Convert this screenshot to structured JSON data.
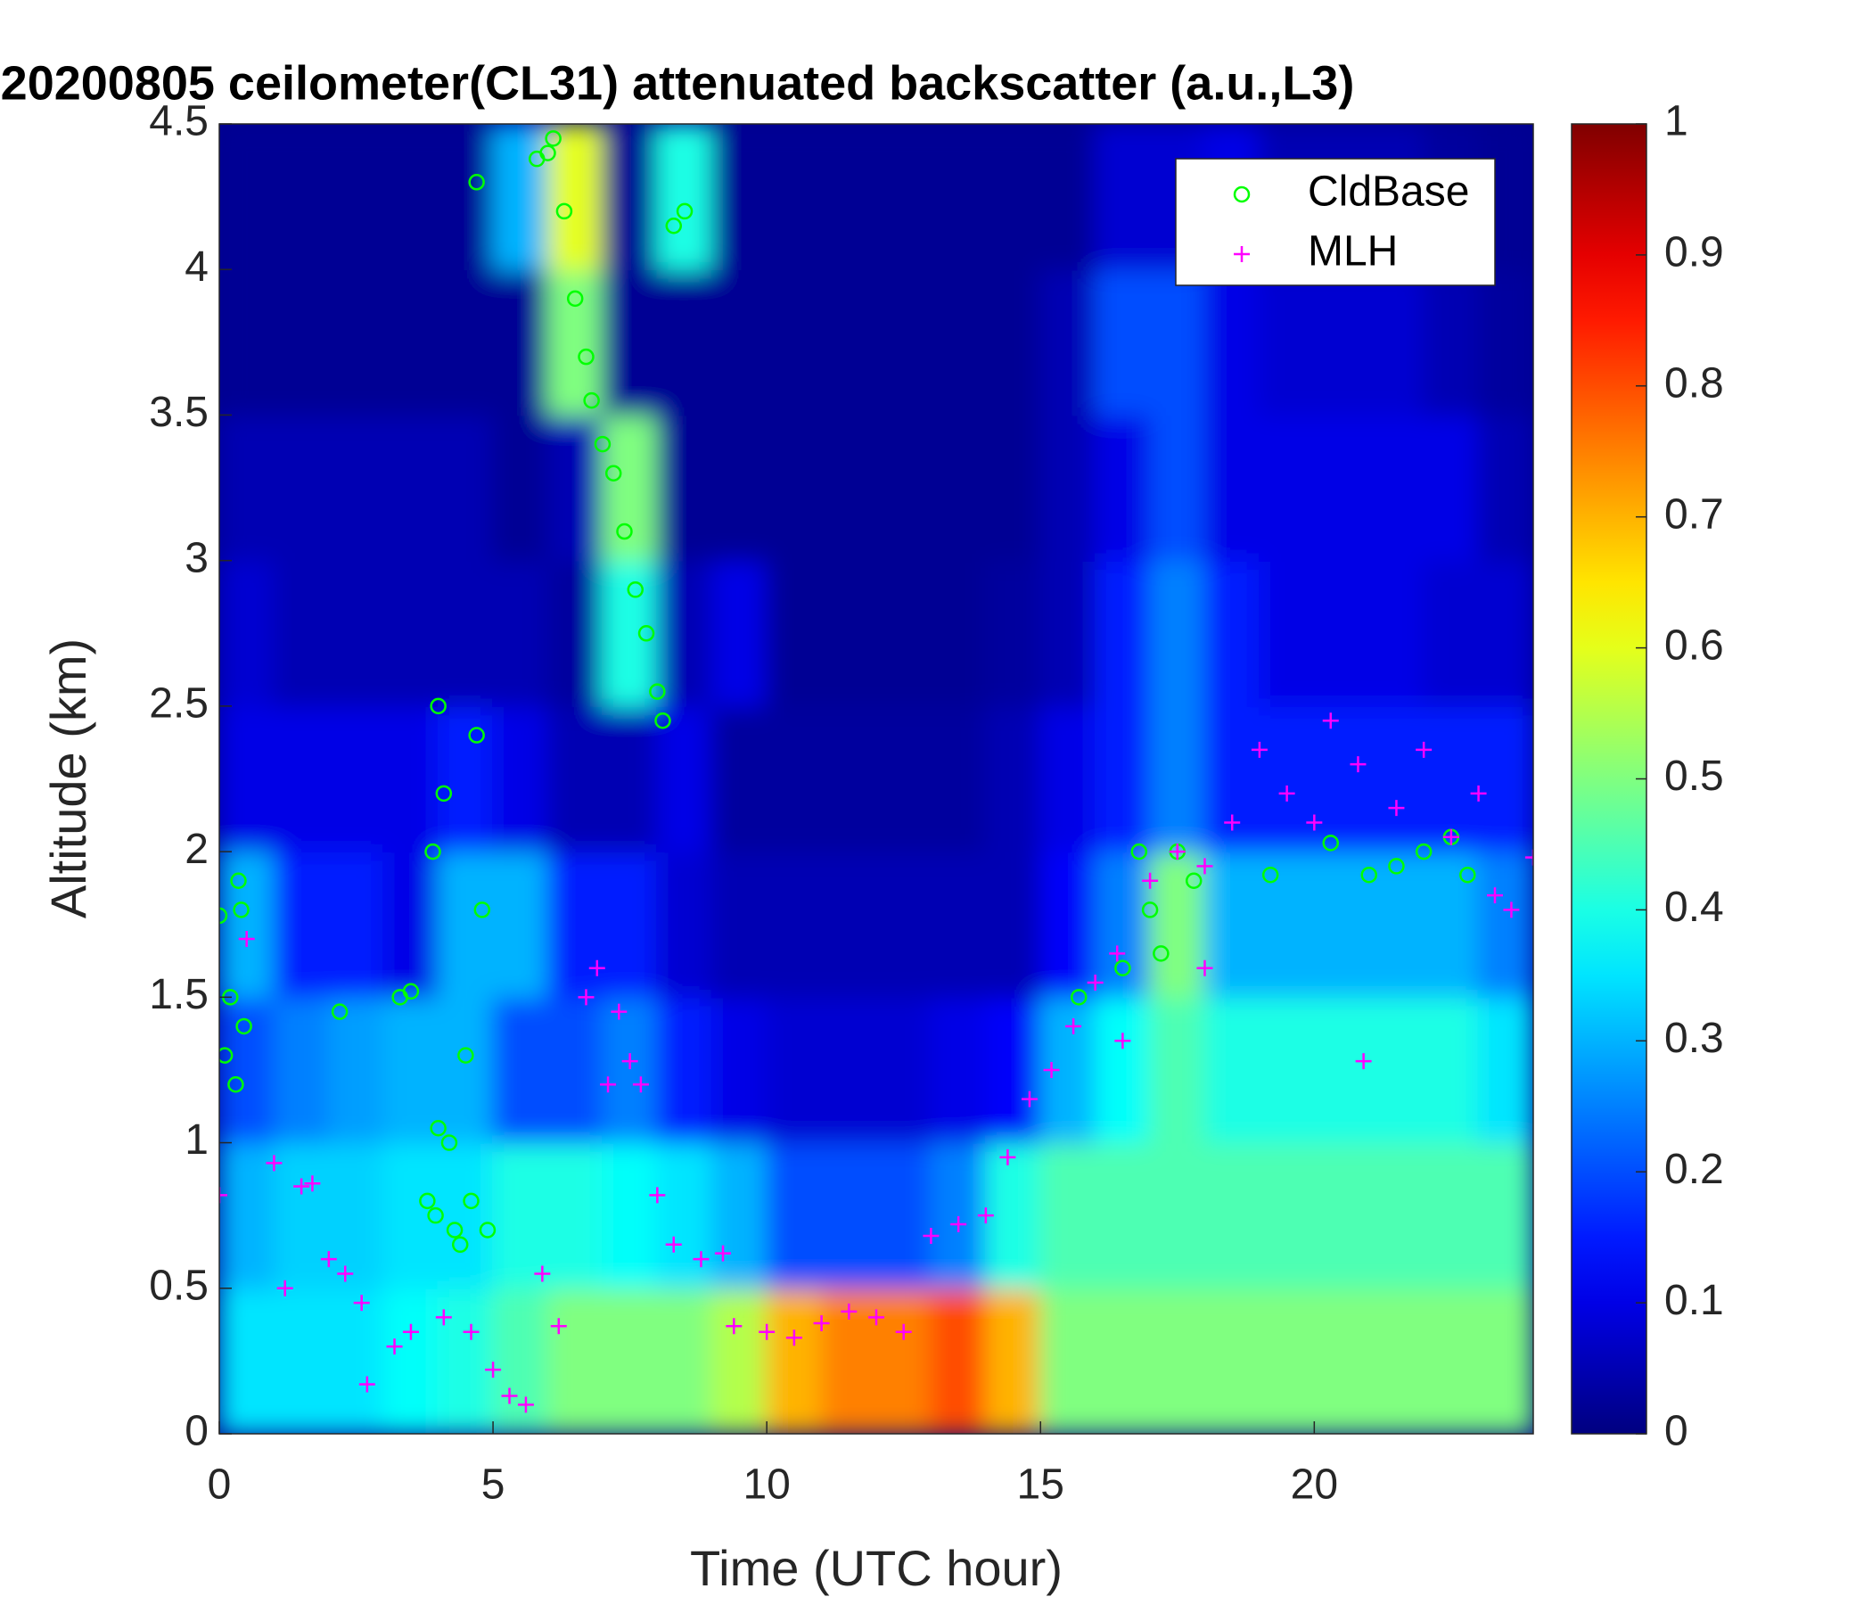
{
  "chart_data": {
    "type": "heatmap",
    "title": "20200805 ceilometer(CL31) attenuated backscatter (a.u.,L3)",
    "x_label": "Time (UTC hour)",
    "y_label": "Altitude (km)",
    "xlim": [
      0,
      24
    ],
    "xticks": [
      0,
      5,
      10,
      15,
      20
    ],
    "ylim": [
      0,
      4.5
    ],
    "yticks": [
      0,
      0.5,
      1,
      1.5,
      2,
      2.5,
      3,
      3.5,
      4,
      4.5
    ],
    "clim": [
      0,
      1
    ],
    "cticks": [
      0,
      0.1,
      0.2,
      0.3,
      0.4,
      0.5,
      0.6,
      0.7,
      0.8,
      0.9,
      1
    ],
    "colormap": "jet",
    "legend": "upper right",
    "xbins": [
      0,
      1,
      2,
      3,
      4,
      5,
      6,
      7,
      8,
      9,
      10,
      11,
      12,
      13,
      14,
      15,
      16,
      17,
      18,
      19,
      20,
      21,
      22,
      23,
      24
    ],
    "ybins": [
      0,
      0.5,
      1,
      1.5,
      2,
      2.5,
      3,
      3.5,
      4,
      4.5
    ],
    "z": [
      [
        0.35,
        0.35,
        0.35,
        0.38,
        0.4,
        0.45,
        0.5,
        0.5,
        0.5,
        0.55,
        0.7,
        0.75,
        0.75,
        0.8,
        0.7,
        0.5,
        0.5,
        0.5,
        0.5,
        0.5,
        0.5,
        0.5,
        0.5,
        0.5
      ],
      [
        0.3,
        0.33,
        0.33,
        0.35,
        0.35,
        0.4,
        0.4,
        0.38,
        0.35,
        0.3,
        0.2,
        0.2,
        0.2,
        0.25,
        0.4,
        0.45,
        0.45,
        0.45,
        0.45,
        0.45,
        0.45,
        0.45,
        0.45,
        0.45
      ],
      [
        0.2,
        0.25,
        0.28,
        0.3,
        0.3,
        0.2,
        0.2,
        0.25,
        0.15,
        0.1,
        0.08,
        0.08,
        0.08,
        0.1,
        0.12,
        0.3,
        0.38,
        0.45,
        0.4,
        0.4,
        0.4,
        0.4,
        0.4,
        0.35
      ],
      [
        0.3,
        0.15,
        0.15,
        0.1,
        0.3,
        0.3,
        0.15,
        0.15,
        0.08,
        0.05,
        0.05,
        0.05,
        0.05,
        0.05,
        0.05,
        0.12,
        0.25,
        0.5,
        0.3,
        0.3,
        0.3,
        0.3,
        0.3,
        0.25
      ],
      [
        0.1,
        0.1,
        0.1,
        0.1,
        0.15,
        0.1,
        0.05,
        0.05,
        0.1,
        0.03,
        0.03,
        0.03,
        0.03,
        0.03,
        0.05,
        0.1,
        0.15,
        0.25,
        0.15,
        0.15,
        0.15,
        0.15,
        0.15,
        0.15
      ],
      [
        0.08,
        0.05,
        0.05,
        0.05,
        0.05,
        0.05,
        0.03,
        0.4,
        0.05,
        0.1,
        0.02,
        0.02,
        0.02,
        0.02,
        0.03,
        0.05,
        0.15,
        0.25,
        0.15,
        0.1,
        0.1,
        0.1,
        0.08,
        0.08
      ],
      [
        0.05,
        0.05,
        0.05,
        0.05,
        0.05,
        0.02,
        0.05,
        0.5,
        0.02,
        0.02,
        0.02,
        0.02,
        0.02,
        0.02,
        0.02,
        0.05,
        0.1,
        0.2,
        0.1,
        0.1,
        0.1,
        0.1,
        0.1,
        0.05
      ],
      [
        0.02,
        0.02,
        0.02,
        0.02,
        0.02,
        0.02,
        0.5,
        0.02,
        0.02,
        0.02,
        0.02,
        0.02,
        0.02,
        0.02,
        0.02,
        0.05,
        0.2,
        0.2,
        0.1,
        0.08,
        0.08,
        0.08,
        0.05,
        0.03
      ],
      [
        0.02,
        0.02,
        0.02,
        0.02,
        0.02,
        0.3,
        0.6,
        0.02,
        0.4,
        0.02,
        0.02,
        0.02,
        0.02,
        0.02,
        0.02,
        0.02,
        0.08,
        0.08,
        0.1,
        0.05,
        0.05,
        0.05,
        0.03,
        0.02
      ]
    ],
    "series": [
      {
        "name": "CldBase",
        "color": "#00ff00",
        "marker": "o",
        "x": [
          0,
          0.1,
          0.2,
          0.3,
          0.35,
          0.4,
          0.45,
          2.2,
          3.3,
          3.5,
          3.8,
          3.9,
          3.95,
          4.0,
          4.0,
          4.1,
          4.2,
          4.3,
          4.4,
          4.5,
          4.6,
          4.7,
          4.8,
          4.9,
          4.7,
          5.8,
          6.0,
          6.1,
          6.3,
          6.5,
          6.7,
          6.8,
          7.0,
          7.2,
          7.4,
          7.6,
          7.8,
          8.0,
          8.1,
          8.3,
          8.5,
          15.7,
          16.5,
          16.8,
          17.0,
          17.2,
          17.5,
          17.8,
          19.2,
          20.3,
          21.0,
          21.5,
          22.0,
          22.5,
          22.8
        ],
        "values": [
          1.78,
          1.3,
          1.5,
          1.2,
          1.9,
          1.8,
          1.4,
          1.45,
          1.5,
          1.52,
          0.8,
          2.0,
          0.75,
          2.5,
          1.05,
          2.2,
          1.0,
          0.7,
          0.65,
          1.3,
          0.8,
          2.4,
          1.8,
          0.7,
          4.3,
          4.38,
          4.4,
          4.45,
          4.2,
          3.9,
          3.7,
          3.55,
          3.4,
          3.3,
          3.1,
          2.9,
          2.75,
          2.55,
          2.45,
          4.15,
          4.2,
          1.5,
          1.6,
          2.0,
          1.8,
          1.65,
          2.0,
          1.9,
          1.92,
          2.03,
          1.92,
          1.95,
          2.0,
          2.05,
          1.92
        ]
      },
      {
        "name": "MLH",
        "color": "#ff00ff",
        "marker": "+",
        "x": [
          0,
          0.5,
          1,
          1.2,
          1.5,
          1.7,
          2,
          2.3,
          2.6,
          2.7,
          3.2,
          3.5,
          4.1,
          4.6,
          5,
          5.3,
          5.6,
          5.9,
          6.2,
          6.7,
          6.9,
          7.1,
          7.3,
          7.5,
          7.7,
          8,
          8.3,
          8.8,
          9.2,
          9.4,
          10,
          10.5,
          11,
          11.5,
          12,
          12.5,
          13,
          13.5,
          14,
          14.4,
          14.8,
          15.2,
          15.6,
          16,
          16.4,
          16.5,
          17,
          17.5,
          18,
          18,
          18.5,
          19,
          19.5,
          20,
          20.3,
          20.8,
          20.9,
          21.5,
          22,
          22.5,
          23,
          23.3,
          23.6,
          24
        ],
        "values": [
          0.82,
          1.7,
          0.93,
          0.5,
          0.85,
          0.86,
          0.6,
          0.55,
          0.45,
          0.17,
          0.3,
          0.35,
          0.4,
          0.35,
          0.22,
          0.13,
          0.1,
          0.55,
          0.37,
          1.5,
          1.6,
          1.2,
          1.45,
          1.28,
          1.2,
          0.82,
          0.65,
          0.6,
          0.62,
          0.37,
          0.35,
          0.33,
          0.38,
          0.42,
          0.4,
          0.35,
          0.68,
          0.72,
          0.75,
          0.95,
          1.15,
          1.25,
          1.4,
          1.55,
          1.65,
          1.35,
          1.9,
          2.0,
          1.95,
          1.6,
          2.1,
          2.35,
          2.2,
          2.1,
          2.45,
          2.3,
          1.28,
          2.15,
          2.35,
          2.05,
          2.2,
          1.85,
          1.8,
          1.98
        ]
      }
    ]
  }
}
